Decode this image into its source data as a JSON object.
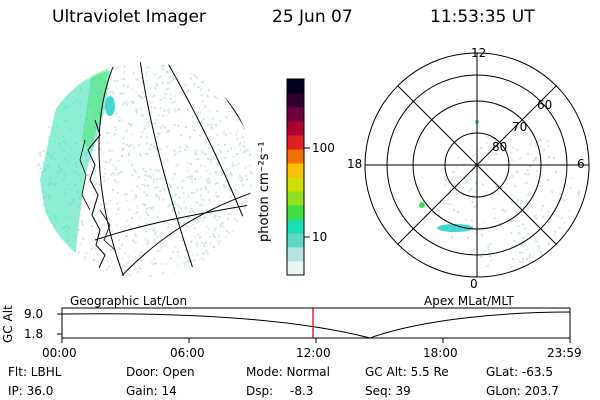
{
  "header": {
    "title": "Ultraviolet Imager",
    "date": "25 Jun 07",
    "time": "11:53:35 UT"
  },
  "colorbar": {
    "label": "photon cm⁻²s⁻¹",
    "ticks": [
      "100",
      "10"
    ],
    "colors": [
      "#e8f4f4",
      "#b8e4e0",
      "#60d8c8",
      "#18e0b0",
      "#40e040",
      "#90e020",
      "#d0e000",
      "#f8c000",
      "#f07000",
      "#e02020",
      "#b00030",
      "#700040",
      "#300030",
      "#000020"
    ]
  },
  "panels": {
    "left_label": "Geographic Lat/Lon",
    "right_label": "Apex  MLat/MLT"
  },
  "polar_plot": {
    "mlt_labels": {
      "top": "12",
      "left": "18",
      "right": "6",
      "bottom": "0"
    },
    "lat_labels": [
      "60",
      "70",
      "80"
    ]
  },
  "altitude_plot": {
    "ylabel": "GC Alt",
    "yticks": [
      "9.0",
      "1.8"
    ],
    "xticks": [
      "00:00",
      "06:00",
      "12:00",
      "18:00",
      "23:59"
    ],
    "marker_color": "#c00000"
  },
  "info": {
    "row1": [
      "Flt: LBHL",
      "Door: Open",
      "Mode: Normal",
      "GC Alt: 5.5 Re",
      "GLat: -63.5"
    ],
    "row2": [
      "IP: 36.0",
      "Gain: 14",
      "Dsp:",
      "-8.3",
      "Seq: 39",
      "GLon: 203.7"
    ]
  }
}
